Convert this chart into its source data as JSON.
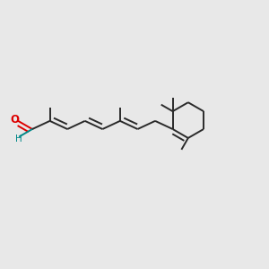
{
  "bg_color": "#e8e8e8",
  "bond_color": "#2a2a2a",
  "o_color": "#dd0000",
  "h_color": "#008888",
  "lw": 1.4,
  "dpi": 100,
  "figsize": [
    3.0,
    3.0
  ]
}
